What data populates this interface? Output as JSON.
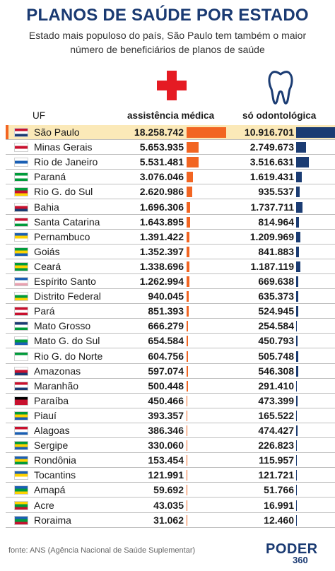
{
  "title": "PLANOS DE SAÚDE POR ESTADO",
  "subtitle": "Estado mais populoso do país, São Paulo tem também o maior número de beneficiários de planos de saúde",
  "icons": {
    "medical": "red-cross-icon",
    "dental": "tooth-icon"
  },
  "colors": {
    "medical": "#f26522",
    "dental": "#1b3c73",
    "title": "#1a3a72",
    "highlight": "#fbe9b8"
  },
  "source": "fonte: ANS (Agência Nacional de Saúde Suplementar)",
  "logo": {
    "text": "PODER",
    "number": "360"
  },
  "chart_data": {
    "type": "table",
    "columns": [
      "UF",
      "assistência médica",
      "só odontológica"
    ],
    "highlighted_row": "São Paulo",
    "rows": [
      {
        "uf": "São Paulo",
        "med": 18258742,
        "odo": 10916701,
        "med_label": "18.258.742",
        "odo_label": "10.916.701"
      },
      {
        "uf": "Minas Gerais",
        "med": 5653935,
        "odo": 2749673,
        "med_label": "5.653.935",
        "odo_label": "2.749.673"
      },
      {
        "uf": "Rio de Janeiro",
        "med": 5531481,
        "odo": 3516631,
        "med_label": "5.531.481",
        "odo_label": "3.516.631"
      },
      {
        "uf": "Paraná",
        "med": 3076046,
        "odo": 1619431,
        "med_label": "3.076.046",
        "odo_label": "1.619.431"
      },
      {
        "uf": "Rio G. do Sul",
        "med": 2620986,
        "odo": 935537,
        "med_label": "2.620.986",
        "odo_label": "935.537"
      },
      {
        "uf": "Bahia",
        "med": 1696306,
        "odo": 1737711,
        "med_label": "1.696.306",
        "odo_label": "1.737.711"
      },
      {
        "uf": "Santa Catarina",
        "med": 1643895,
        "odo": 814964,
        "med_label": "1.643.895",
        "odo_label": "814.964"
      },
      {
        "uf": "Pernambuco",
        "med": 1391422,
        "odo": 1209969,
        "med_label": "1.391.422",
        "odo_label": "1.209.969"
      },
      {
        "uf": "Goiás",
        "med": 1352397,
        "odo": 841883,
        "med_label": "1.352.397",
        "odo_label": "841.883"
      },
      {
        "uf": "Ceará",
        "med": 1338696,
        "odo": 1187119,
        "med_label": "1.338.696",
        "odo_label": "1.187.119"
      },
      {
        "uf": "Espírito Santo",
        "med": 1262994,
        "odo": 669638,
        "med_label": "1.262.994",
        "odo_label": "669.638"
      },
      {
        "uf": "Distrito Federal",
        "med": 940045,
        "odo": 635373,
        "med_label": "940.045",
        "odo_label": "635.373"
      },
      {
        "uf": "Pará",
        "med": 851393,
        "odo": 524945,
        "med_label": "851.393",
        "odo_label": "524.945"
      },
      {
        "uf": "Mato Grosso",
        "med": 666279,
        "odo": 254584,
        "med_label": "666.279",
        "odo_label": "254.584"
      },
      {
        "uf": "Mato G. do Sul",
        "med": 654584,
        "odo": 450793,
        "med_label": "654.584",
        "odo_label": "450.793"
      },
      {
        "uf": "Rio G. do Norte",
        "med": 604756,
        "odo": 505748,
        "med_label": "604.756",
        "odo_label": "505.748"
      },
      {
        "uf": "Amazonas",
        "med": 597074,
        "odo": 546308,
        "med_label": "597.074",
        "odo_label": "546.308"
      },
      {
        "uf": "Maranhão",
        "med": 500448,
        "odo": 291410,
        "med_label": "500.448",
        "odo_label": "291.410"
      },
      {
        "uf": "Paraíba",
        "med": 450466,
        "odo": 473399,
        "med_label": "450.466",
        "odo_label": "473.399"
      },
      {
        "uf": "Piauí",
        "med": 393357,
        "odo": 165522,
        "med_label": "393.357",
        "odo_label": "165.522"
      },
      {
        "uf": "Alagoas",
        "med": 386346,
        "odo": 474427,
        "med_label": "386.346",
        "odo_label": "474.427"
      },
      {
        "uf": "Sergipe",
        "med": 330060,
        "odo": 226823,
        "med_label": "330.060",
        "odo_label": "226.823"
      },
      {
        "uf": "Rondônia",
        "med": 153454,
        "odo": 115957,
        "med_label": "153.454",
        "odo_label": "115.957"
      },
      {
        "uf": "Tocantins",
        "med": 121991,
        "odo": 121721,
        "med_label": "121.991",
        "odo_label": "121.721"
      },
      {
        "uf": "Amapá",
        "med": 59692,
        "odo": 51766,
        "med_label": "59.692",
        "odo_label": "51.766"
      },
      {
        "uf": "Acre",
        "med": 43035,
        "odo": 16991,
        "med_label": "43.035",
        "odo_label": "16.991"
      },
      {
        "uf": "Roraima",
        "med": 31062,
        "odo": 12460,
        "med_label": "31.062",
        "odo_label": "12.460"
      }
    ],
    "flag_colors": {
      "São Paulo": [
        "#c8102e",
        "#ffffff",
        "#1a3a72"
      ],
      "Minas Gerais": [
        "#ffffff",
        "#c8102e",
        "#ffffff"
      ],
      "Rio de Janeiro": [
        "#ffffff",
        "#1a5fb4",
        "#ffffff"
      ],
      "Paraná": [
        "#009b3a",
        "#ffffff",
        "#009b3a"
      ],
      "Rio G. do Sul": [
        "#009b3a",
        "#c8102e",
        "#ffd200"
      ],
      "Bahia": [
        "#ffffff",
        "#c8102e",
        "#1a3a72"
      ],
      "Santa Catarina": [
        "#c8102e",
        "#ffffff",
        "#009b3a"
      ],
      "Pernambuco": [
        "#1a5fb4",
        "#ffd200",
        "#ffffff"
      ],
      "Goiás": [
        "#009b3a",
        "#ffd200",
        "#1a5fb4"
      ],
      "Ceará": [
        "#009b3a",
        "#ffd200",
        "#009b3a"
      ],
      "Espírito Santo": [
        "#1a5fb4",
        "#ffffff",
        "#e8a0b0"
      ],
      "Distrito Federal": [
        "#ffffff",
        "#009b3a",
        "#ffd200"
      ],
      "Pará": [
        "#c8102e",
        "#ffffff",
        "#c8102e"
      ],
      "Mato Grosso": [
        "#1a3a72",
        "#ffffff",
        "#009b3a"
      ],
      "Mato G. do Sul": [
        "#ffffff",
        "#009b3a",
        "#1a5fb4"
      ],
      "Rio G. do Norte": [
        "#009b3a",
        "#ffffff",
        "#ffffff"
      ],
      "Amazonas": [
        "#ffffff",
        "#c8102e",
        "#1a3a72"
      ],
      "Maranhão": [
        "#c8102e",
        "#ffffff",
        "#1a3a72"
      ],
      "Paraíba": [
        "#000000",
        "#c8102e",
        "#c8102e"
      ],
      "Piauí": [
        "#009b3a",
        "#ffd200",
        "#1a5fb4"
      ],
      "Alagoas": [
        "#c8102e",
        "#ffffff",
        "#1a5fb4"
      ],
      "Sergipe": [
        "#009b3a",
        "#ffd200",
        "#1a5fb4"
      ],
      "Rondônia": [
        "#1a5fb4",
        "#ffd200",
        "#009b3a"
      ],
      "Tocantins": [
        "#1a5fb4",
        "#ffd200",
        "#ffffff"
      ],
      "Amapá": [
        "#1a5fb4",
        "#009b3a",
        "#ffd200"
      ],
      "Acre": [
        "#ffd200",
        "#009b3a",
        "#c8102e"
      ],
      "Roraima": [
        "#1a5fb4",
        "#009b3a",
        "#c8102e"
      ]
    }
  }
}
